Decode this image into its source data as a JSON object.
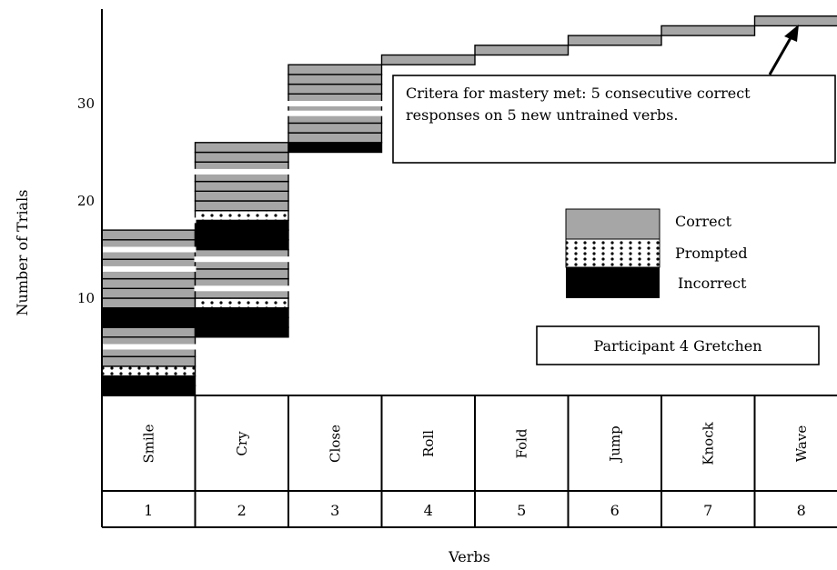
{
  "chart_data": {
    "type": "bar",
    "title": "",
    "xlabel": "Verbs",
    "ylabel": "Number of Trials",
    "yticks": [
      "10",
      "20",
      "30"
    ],
    "ytick_values": [
      10,
      20,
      30
    ],
    "ylim": [
      0,
      39
    ],
    "categories": [
      "Smile",
      "Cry",
      "Close",
      "Roll",
      "Fold",
      "Jump",
      "Knock",
      "Wave"
    ],
    "category_numbers": [
      "1",
      "2",
      "3",
      "4",
      "5",
      "6",
      "7",
      "8"
    ],
    "legend": {
      "placement": "right",
      "entries": [
        {
          "key": "correct",
          "label": "Correct",
          "color": "#a6a6a6"
        },
        {
          "key": "prompted",
          "label": "Prompted",
          "pattern": "dotted"
        },
        {
          "key": "incorrect",
          "label": "Incorrect",
          "color": "#000000"
        }
      ]
    },
    "annotation": "Critera for mastery met: 5 consecutive correct responses on 5 new untrained verbs.",
    "participant_label": "Participant 4 Gretchen",
    "trials": [
      [
        "I",
        "I",
        "P",
        "C",
        "C",
        "C",
        "C",
        "I",
        "I",
        "C",
        "C",
        "C",
        "C",
        "C",
        "C",
        "C",
        "C"
      ],
      [
        "I",
        "I",
        "I",
        "P",
        "C",
        "C",
        "C",
        "C",
        "C",
        "I",
        "I",
        "I",
        "P",
        "C",
        "C",
        "C",
        "C",
        "C",
        "C",
        "C"
      ],
      [
        "I",
        "C",
        "C",
        "C",
        "C",
        "C",
        "C",
        "C",
        "C"
      ],
      [
        "C"
      ],
      [
        "C"
      ],
      [
        "C"
      ],
      [
        "C"
      ],
      [
        "C"
      ]
    ],
    "trial_starts": [
      0,
      6,
      25,
      34,
      35,
      36,
      37,
      38
    ],
    "gaps": [
      {
        "verb": "Smile",
        "after_trial": 5
      },
      {
        "verb": "Smile",
        "after_trial": 13
      },
      {
        "verb": "Smile",
        "after_trial": 15
      },
      {
        "verb": "Smile",
        "after_trial": 18
      },
      {
        "verb": "Smile",
        "after_trial": 23
      },
      {
        "verb": "Cry",
        "after_trial": 11
      },
      {
        "verb": "Cry",
        "after_trial": 14
      },
      {
        "verb": "Cry",
        "after_trial": 23
      },
      {
        "verb": "Close",
        "after_trial": 29
      },
      {
        "verb": "Close",
        "after_trial": 30
      }
    ]
  },
  "colors": {
    "correct": "#a6a6a6",
    "incorrect": "#000000",
    "prompted_dot": "#000000",
    "line": "#000000"
  }
}
